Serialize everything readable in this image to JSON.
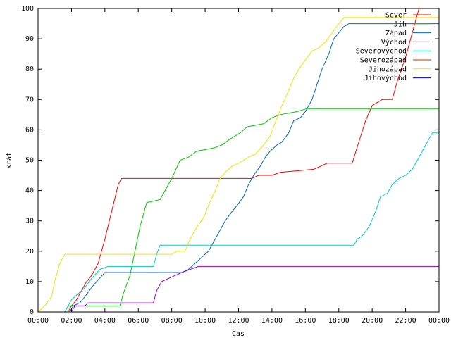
{
  "chart_data": {
    "type": "line",
    "title": "",
    "xlabel": "Čas",
    "ylabel": "krát",
    "xlim": [
      0,
      24
    ],
    "ylim": [
      0,
      100
    ],
    "x_ticks": [
      "00:00",
      "02:00",
      "04:00",
      "06:00",
      "08:00",
      "10:00",
      "12:00",
      "14:00",
      "16:00",
      "18:00",
      "20:00",
      "22:00",
      "00:00"
    ],
    "y_ticks": [
      0,
      10,
      20,
      30,
      40,
      50,
      60,
      70,
      80,
      90,
      100
    ],
    "grid": false,
    "legend_position": "top-right",
    "series": [
      {
        "name": "Sever",
        "color": "#ff0000",
        "points": [
          [
            1.8,
            0
          ],
          [
            2.0,
            2
          ],
          [
            2.3,
            4
          ],
          [
            2.6,
            7
          ],
          [
            2.9,
            10
          ],
          [
            3.2,
            12
          ],
          [
            3.6,
            16
          ],
          [
            4.0,
            24
          ],
          [
            4.4,
            33
          ],
          [
            4.8,
            42
          ],
          [
            5.0,
            44
          ],
          [
            12.8,
            44
          ],
          [
            13.2,
            45
          ],
          [
            14.0,
            45
          ],
          [
            14.5,
            46
          ],
          [
            16.5,
            47
          ],
          [
            17.3,
            49
          ],
          [
            18.8,
            49
          ],
          [
            19.2,
            56
          ],
          [
            19.6,
            63
          ],
          [
            20.0,
            68
          ],
          [
            20.3,
            69
          ],
          [
            20.6,
            70
          ],
          [
            21.2,
            70
          ],
          [
            21.5,
            76
          ],
          [
            22.0,
            84
          ],
          [
            22.3,
            90
          ],
          [
            22.6,
            96
          ],
          [
            22.8,
            100
          ]
        ]
      },
      {
        "name": "Jih",
        "color": "#00cc00",
        "points": [
          [
            1.6,
            0
          ],
          [
            1.8,
            2
          ],
          [
            4.9,
            2
          ],
          [
            5.1,
            6
          ],
          [
            5.5,
            12
          ],
          [
            5.8,
            20
          ],
          [
            6.1,
            28
          ],
          [
            6.5,
            36
          ],
          [
            7.3,
            37
          ],
          [
            7.6,
            40
          ],
          [
            8.0,
            44
          ],
          [
            8.5,
            50
          ],
          [
            9.0,
            51
          ],
          [
            9.5,
            53
          ],
          [
            10.5,
            54
          ],
          [
            11.0,
            55
          ],
          [
            11.5,
            57
          ],
          [
            12.1,
            59
          ],
          [
            12.5,
            61
          ],
          [
            13.5,
            62
          ],
          [
            14.0,
            64
          ],
          [
            14.5,
            65
          ],
          [
            15.5,
            66
          ],
          [
            16.1,
            67
          ],
          [
            24.0,
            67
          ]
        ]
      },
      {
        "name": "Západ",
        "color": "#0066cc",
        "points": [
          [
            1.9,
            0
          ],
          [
            2.1,
            2
          ],
          [
            2.5,
            3
          ],
          [
            2.8,
            5
          ],
          [
            3.2,
            8
          ],
          [
            3.5,
            10
          ],
          [
            4.0,
            13
          ],
          [
            8.0,
            13
          ],
          [
            8.6,
            13
          ],
          [
            9.0,
            14
          ],
          [
            9.4,
            16
          ],
          [
            9.8,
            18
          ],
          [
            10.2,
            20
          ],
          [
            10.5,
            23
          ],
          [
            10.8,
            26
          ],
          [
            11.2,
            30
          ],
          [
            11.6,
            33
          ],
          [
            11.9,
            35
          ],
          [
            12.3,
            38
          ],
          [
            12.6,
            42
          ],
          [
            12.9,
            45
          ],
          [
            13.3,
            48
          ],
          [
            13.6,
            51
          ],
          [
            13.9,
            53
          ],
          [
            14.3,
            55
          ],
          [
            14.6,
            56
          ],
          [
            15.0,
            59
          ],
          [
            15.3,
            63
          ],
          [
            15.7,
            64
          ],
          [
            16.0,
            66
          ],
          [
            16.4,
            70
          ],
          [
            16.7,
            75
          ],
          [
            17.0,
            80
          ],
          [
            17.4,
            85
          ],
          [
            17.7,
            90
          ],
          [
            18.0,
            92
          ],
          [
            18.3,
            94
          ],
          [
            18.6,
            95
          ],
          [
            24.0,
            95
          ]
        ]
      },
      {
        "name": "Východ",
        "color": "#9900cc",
        "points": [
          [
            2.0,
            0
          ],
          [
            2.2,
            2
          ],
          [
            2.8,
            2
          ],
          [
            3.0,
            3
          ],
          [
            6.9,
            3
          ],
          [
            7.1,
            7
          ],
          [
            7.4,
            10
          ],
          [
            7.8,
            11
          ],
          [
            8.2,
            12
          ],
          [
            8.6,
            13
          ],
          [
            9.1,
            14
          ],
          [
            9.6,
            15
          ],
          [
            24.0,
            15
          ]
        ]
      },
      {
        "name": "Severovýchod",
        "color": "#00cccc",
        "points": [
          [
            1.6,
            0
          ],
          [
            1.8,
            2
          ],
          [
            2.0,
            4
          ],
          [
            2.4,
            6
          ],
          [
            2.8,
            8
          ],
          [
            3.2,
            11
          ],
          [
            3.7,
            14
          ],
          [
            4.2,
            15
          ],
          [
            6.9,
            15
          ],
          [
            7.1,
            19
          ],
          [
            7.3,
            22
          ],
          [
            18.9,
            22
          ],
          [
            19.1,
            24
          ],
          [
            19.4,
            25
          ],
          [
            19.8,
            28
          ],
          [
            20.2,
            33
          ],
          [
            20.5,
            38
          ],
          [
            20.9,
            39
          ],
          [
            21.2,
            42
          ],
          [
            21.6,
            44
          ],
          [
            22.0,
            45
          ],
          [
            22.4,
            47
          ],
          [
            22.8,
            51
          ],
          [
            23.2,
            55
          ],
          [
            23.6,
            59
          ],
          [
            24.0,
            59
          ]
        ]
      },
      {
        "name": "Severozápad",
        "color": "#cc3300",
        "points": []
      },
      {
        "name": "Jihozápad",
        "color": "#ffdd00",
        "points": [
          [
            0.0,
            0
          ],
          [
            0.2,
            1
          ],
          [
            0.4,
            2
          ],
          [
            0.8,
            5
          ],
          [
            1.0,
            10
          ],
          [
            1.3,
            16
          ],
          [
            1.6,
            19
          ],
          [
            8.0,
            19
          ],
          [
            8.3,
            20
          ],
          [
            8.8,
            20
          ],
          [
            9.1,
            24
          ],
          [
            9.5,
            28
          ],
          [
            9.9,
            31
          ],
          [
            10.2,
            35
          ],
          [
            10.6,
            40
          ],
          [
            10.9,
            44
          ],
          [
            11.2,
            46
          ],
          [
            11.6,
            48
          ],
          [
            12.0,
            49
          ],
          [
            12.6,
            51
          ],
          [
            13.0,
            52
          ],
          [
            13.5,
            55
          ],
          [
            13.9,
            58
          ],
          [
            14.3,
            64
          ],
          [
            14.6,
            68
          ],
          [
            15.0,
            73
          ],
          [
            15.3,
            77
          ],
          [
            15.6,
            80
          ],
          [
            16.0,
            83
          ],
          [
            16.4,
            86
          ],
          [
            16.8,
            87
          ],
          [
            17.2,
            89
          ],
          [
            17.6,
            92
          ],
          [
            18.0,
            95
          ],
          [
            18.3,
            97
          ],
          [
            24.0,
            97
          ]
        ]
      },
      {
        "name": "Jihovýchod",
        "color": "#0000aa",
        "points": []
      }
    ]
  }
}
